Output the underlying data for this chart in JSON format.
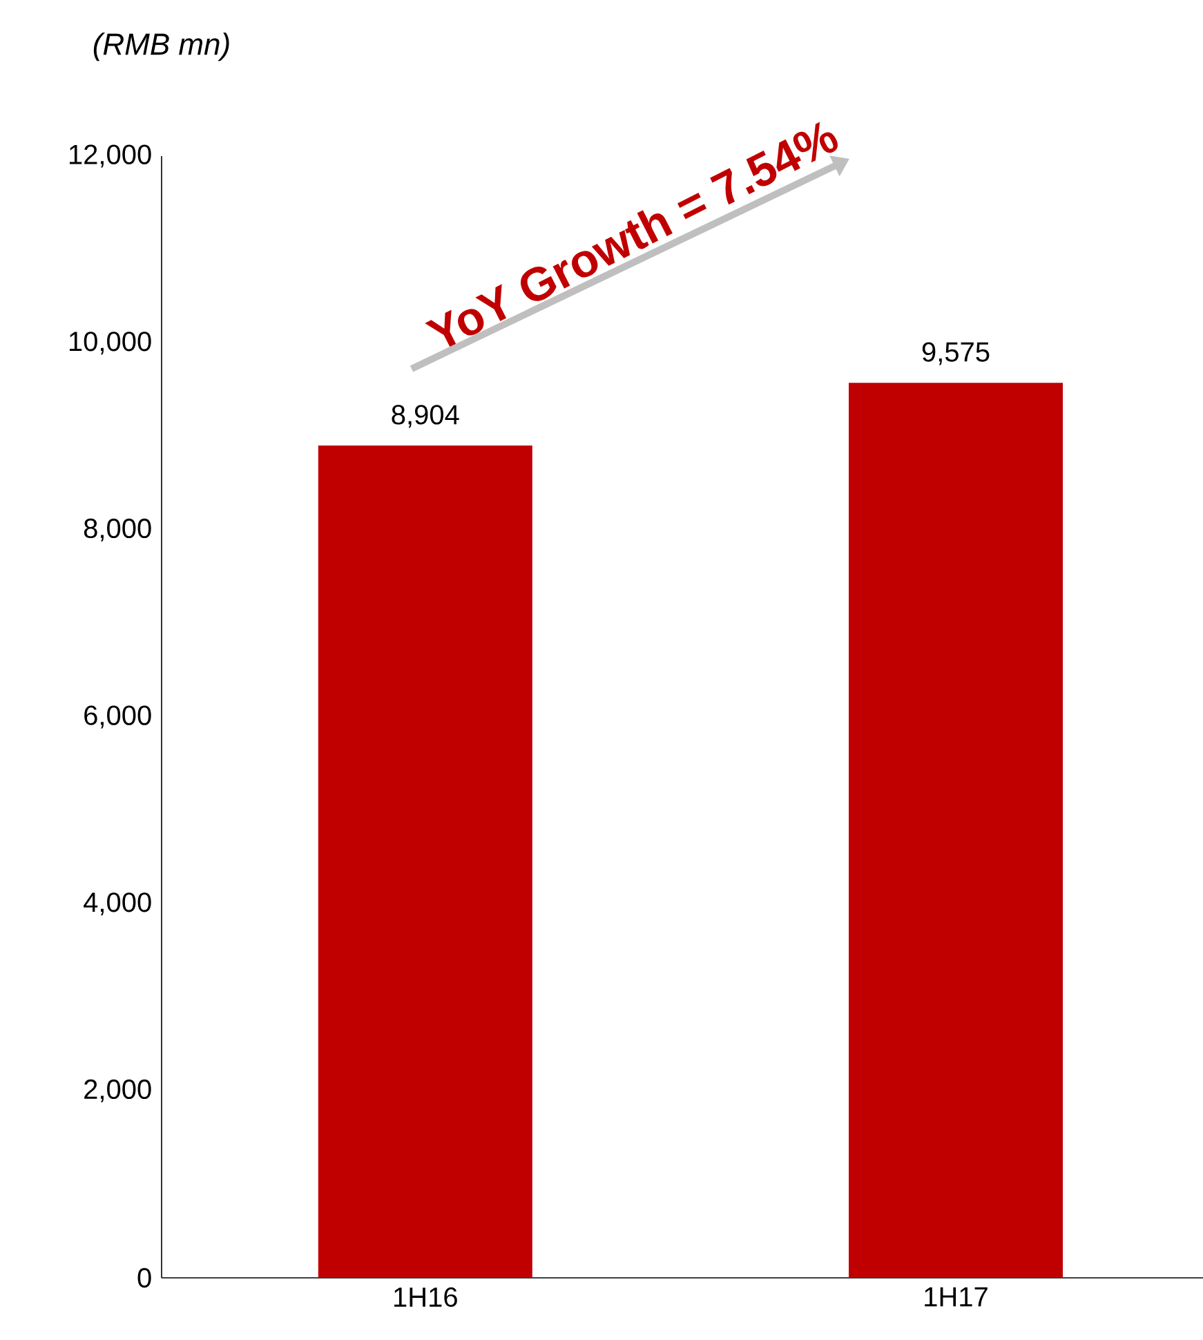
{
  "chart_data": {
    "type": "bar",
    "ylabel": "(RMB mn)",
    "categories": [
      "1H16",
      "1H17"
    ],
    "values": [
      8904,
      9575
    ],
    "color": "#c00000",
    "value_labels": [
      "8,904",
      "9,575"
    ],
    "ylim": [
      0,
      12000
    ],
    "yticks": [
      0,
      {
        "value": 2000,
        "label": "2,000"
      },
      {
        "value": 4000,
        "label": "4,000"
      },
      {
        "value": 6000,
        "label": "6,000"
      },
      {
        "value": 8000,
        "label": "8,000"
      },
      {
        "value": 10000,
        "label": "10,000"
      },
      {
        "value": 12000,
        "label": "12,000"
      }
    ],
    "annotations": [
      "YoY Growth = 7.54%"
    ],
    "grid": false
  }
}
